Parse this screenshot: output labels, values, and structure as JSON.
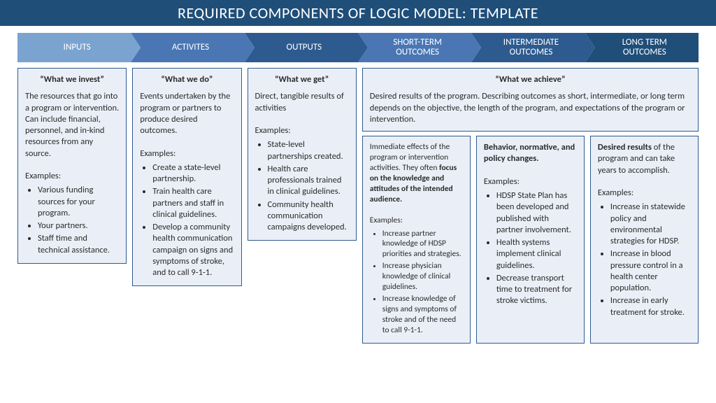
{
  "header": "REQUIRED COMPONENTS OF LOGIC MODEL: TEMPLATE",
  "arrows": [
    {
      "label": "INPUTS",
      "bg": "#7ba3d0"
    },
    {
      "label": "ACTIVITES",
      "bg": "#4a77b4"
    },
    {
      "label": "OUTPUTS",
      "bg": "#2e5b8f"
    },
    {
      "label": "SHORT-TERM\nOUTCOMES",
      "bg": "#4a77b4"
    },
    {
      "label": "INTERMEDIATE\nOUTCOMES",
      "bg": "#2e5b8f"
    },
    {
      "label": "LONG TERM\nOUTCOMES",
      "bg": "#1f4e79"
    }
  ],
  "col1": {
    "title": "“What we invest”",
    "desc": "The resources that go into a program or intervention. Can include financial, personnel, and in-kind resources from any source.",
    "ex": "Examples:",
    "items": [
      "Various funding sources for your program.",
      "Your partners.",
      "Staff time and technical assistance."
    ]
  },
  "col2": {
    "title": "“What we do”",
    "desc": "Events undertaken by the program or partners to produce desired outcomes.",
    "ex": "Examples:",
    "items": [
      "Create a state-level partnership.",
      "Train health care partners and staff in clinical guidelines.",
      "Develop a community health communication campaign on signs and symptoms of stroke, and to call 9-1-1."
    ]
  },
  "col3": {
    "title": "“What we get”",
    "desc": "Direct, tangible results of activities",
    "ex": "Examples:",
    "items": [
      "State-level partnerships created.",
      "Health care professionals trained in clinical guidelines.",
      "Community health communication campaigns developed."
    ]
  },
  "achieve": {
    "title": "“What we achieve”",
    "desc": "Desired results of the program. Describing outcomes as short, intermediate, or long term depends on the objective, the length of the program, and expectations of the program or intervention."
  },
  "short": {
    "lead1": "Immediate effects of the program or intervention activities. They often ",
    "bold": "focus on the knowledge and attitudes of the intended audience.",
    "ex": "Examples:",
    "items": [
      "Increase partner knowledge of HDSP priorities and strategies.",
      "Increase physician knowledge of clinical guidelines.",
      "Increase knowledge of signs and symptoms of stroke and of the need to call 9-1-1."
    ]
  },
  "inter": {
    "bold": "Behavior, normative, and policy changes.",
    "ex": "Examples:",
    "items": [
      "HDSP State Plan has been developed and published with partner involvement.",
      "Health systems implement clinical guidelines.",
      "Decrease transport time to treatment for stroke victims."
    ]
  },
  "long": {
    "bold": "Desired results",
    "lead": " of the program and can take years to accomplish.",
    "ex": "Examples:",
    "items": [
      "Increase in statewide policy and environmental strategies for HDSP.",
      "Increase in blood pressure control in a health center population.",
      "Increase in early treatment for stroke."
    ]
  }
}
